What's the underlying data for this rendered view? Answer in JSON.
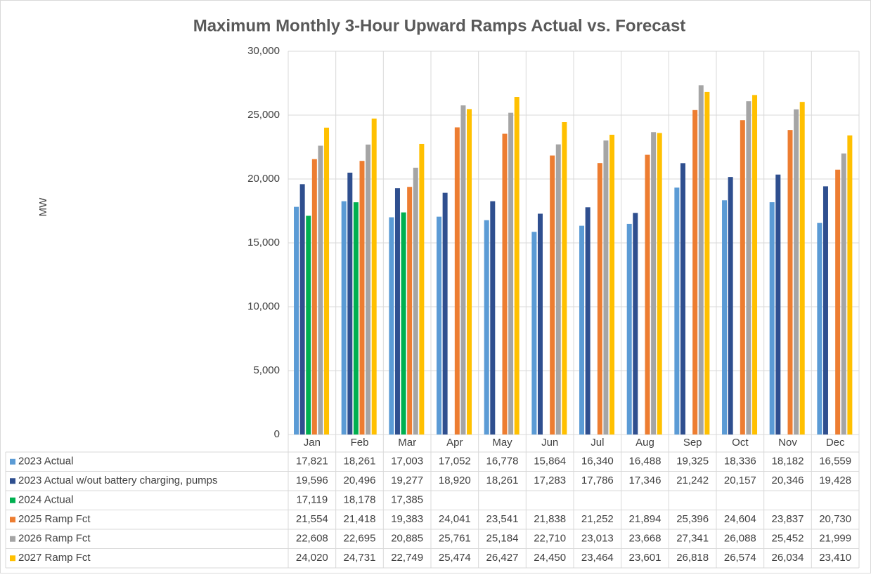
{
  "chart_data": {
    "type": "bar",
    "title": "Maximum Monthly 3-Hour Upward Ramps Actual vs. Forecast",
    "y_label": "MW",
    "categories": [
      "Jan",
      "Feb",
      "Mar",
      "Apr",
      "May",
      "Jun",
      "Jul",
      "Aug",
      "Sep",
      "Oct",
      "Nov",
      "Dec"
    ],
    "ylim": [
      0,
      30000
    ],
    "yticks": [
      0,
      {
        "value": 5000,
        "label": "5,000"
      },
      {
        "value": 10000,
        "label": "10,000"
      },
      {
        "value": 15000,
        "label": "15,000"
      },
      {
        "value": 20000,
        "label": "20,000"
      },
      {
        "value": 25000,
        "label": "25,000"
      },
      {
        "value": 30000,
        "label": "30,000"
      }
    ],
    "grid": true,
    "series": [
      {
        "name": "2023 Actual",
        "color": "#5b9bd5",
        "values": [
          17821,
          18261,
          17003,
          17052,
          16778,
          15864,
          16340,
          16488,
          19325,
          18336,
          18182,
          16559
        ],
        "value_labels": [
          "17,821",
          "18,261",
          "17,003",
          "17,052",
          "16,778",
          "15,864",
          "16,340",
          "16,488",
          "19,325",
          "18,336",
          "18,182",
          "16,559"
        ]
      },
      {
        "name": "2023 Actual w/out battery charging, pumps",
        "color": "#2f4f8f",
        "values": [
          19596,
          20496,
          19277,
          18920,
          18261,
          17283,
          17786,
          17346,
          21242,
          20157,
          20346,
          19428
        ],
        "value_labels": [
          "19,596",
          "20,496",
          "19,277",
          "18,920",
          "18,261",
          "17,283",
          "17,786",
          "17,346",
          "21,242",
          "20,157",
          "20,346",
          "19,428"
        ]
      },
      {
        "name": "2024 Actual",
        "color": "#00b050",
        "values": [
          17119,
          18178,
          17385,
          null,
          null,
          null,
          null,
          null,
          null,
          null,
          null,
          null
        ],
        "value_labels": [
          "17,119",
          "18,178",
          "17,385",
          null,
          null,
          null,
          null,
          null,
          null,
          null,
          null,
          null
        ]
      },
      {
        "name": "2025 Ramp Fct",
        "color": "#ed7d31",
        "values": [
          21554,
          21418,
          19383,
          24041,
          23541,
          21838,
          21252,
          21894,
          25396,
          24604,
          23837,
          20730
        ],
        "value_labels": [
          "21,554",
          "21,418",
          "19,383",
          "24,041",
          "23,541",
          "21,838",
          "21,252",
          "21,894",
          "25,396",
          "24,604",
          "23,837",
          "20,730"
        ]
      },
      {
        "name": "2026 Ramp Fct",
        "color": "#a5a5a5",
        "values": [
          22608,
          22695,
          20885,
          25761,
          25184,
          22710,
          23013,
          23668,
          27341,
          26088,
          25452,
          21999
        ],
        "value_labels": [
          "22,608",
          "22,695",
          "20,885",
          "25,761",
          "25,184",
          "22,710",
          "23,013",
          "23,668",
          "27,341",
          "26,088",
          "25,452",
          "21,999"
        ]
      },
      {
        "name": "2027 Ramp Fct",
        "color": "#ffc000",
        "values": [
          24020,
          24731,
          22749,
          25474,
          26427,
          24450,
          23464,
          23601,
          26818,
          26574,
          26034,
          23410
        ],
        "value_labels": [
          "24,020",
          "24,731",
          "22,749",
          "25,474",
          "26,427",
          "24,450",
          "23,464",
          "23,601",
          "26,818",
          "26,574",
          "26,034",
          "23,410"
        ]
      }
    ]
  }
}
